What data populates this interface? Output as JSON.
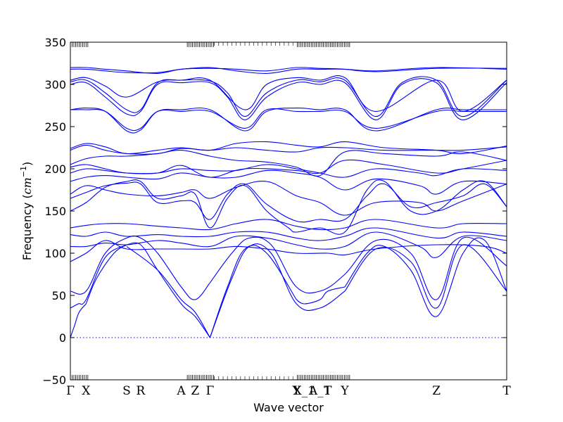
{
  "chart_data": {
    "type": "line",
    "title": "",
    "xlabel": "Wave vector",
    "ylabel_text": "Frequency (",
    "ylabel_unit": "cm",
    "ylabel_exp": "−1",
    "ylabel_close": ")",
    "ylim": [
      -50,
      350
    ],
    "yticks": [
      -50,
      0,
      50,
      100,
      150,
      200,
      250,
      300,
      350
    ],
    "xlim": [
      0,
      1
    ],
    "grid": false,
    "line_color": "#0000ff",
    "zero_line_color": "#0000ff",
    "high_symmetry_points": [
      {
        "label": "Γ",
        "x": 0.0
      },
      {
        "label": "X",
        "x": 0.036
      },
      {
        "label": "S",
        "x": 0.129
      },
      {
        "label": "R",
        "x": 0.161
      },
      {
        "label": "A",
        "x": 0.254
      },
      {
        "label": "Z",
        "x": 0.286
      },
      {
        "label": "Γ",
        "x": 0.32
      },
      {
        "label": "Y",
        "x": 0.518
      },
      {
        "label": "X_1",
        "x": 0.536
      },
      {
        "label": "A_1",
        "x": 0.572
      },
      {
        "label": "T",
        "x": 0.59
      },
      {
        "label": "Y",
        "x": 0.629
      },
      {
        "label": "Z",
        "x": 0.839
      },
      {
        "label": "T",
        "x": 1.0
      }
    ],
    "tick_clusters": [
      [
        0.0,
        0.04
      ],
      [
        0.268,
        0.33
      ],
      [
        0.52,
        0.6
      ],
      [
        0.6,
        0.64
      ]
    ],
    "series": [
      {
        "x": [
          0,
          0.01,
          0.02,
          0.036
        ],
        "y": [
          0,
          15,
          30,
          40
        ]
      },
      {
        "x": [
          0.036,
          0.06,
          0.1,
          0.129
        ],
        "y": [
          40,
          70,
          100,
          110
        ]
      },
      {
        "x": [
          0.129,
          0.161,
          0.2,
          0.254,
          0.286,
          0.32
        ],
        "y": [
          110,
          110,
          80,
          40,
          25,
          0
        ]
      },
      {
        "x": [
          0.32,
          0.36,
          0.4,
          0.45,
          0.518
        ],
        "y": [
          0,
          60,
          105,
          100,
          45
        ]
      },
      {
        "x": [
          0.518,
          0.536,
          0.572,
          0.59,
          0.629
        ],
        "y": [
          45,
          40,
          45,
          55,
          60
        ]
      },
      {
        "x": [
          0.629,
          0.68,
          0.72,
          0.78,
          0.839,
          0.9,
          0.95,
          1.0
        ],
        "y": [
          60,
          100,
          108,
          80,
          25,
          100,
          115,
          55
        ]
      },
      {
        "x": [
          0,
          0.018,
          0.036,
          0.08,
          0.129
        ],
        "y": [
          35,
          40,
          45,
          95,
          110
        ]
      },
      {
        "x": [
          0.129,
          0.2,
          0.254,
          0.286,
          0.32
        ],
        "y": [
          108,
          80,
          45,
          30,
          0
        ]
      },
      {
        "x": [
          0.32,
          0.37,
          0.41,
          0.46,
          0.518,
          0.572,
          0.629
        ],
        "y": [
          0,
          70,
          108,
          100,
          40,
          35,
          55
        ]
      },
      {
        "x": [
          0.629,
          0.7,
          0.78,
          0.839,
          0.9,
          1.0
        ],
        "y": [
          55,
          105,
          90,
          35,
          110,
          55
        ]
      },
      {
        "x": [
          0,
          0.036,
          0.08,
          0.129,
          0.161,
          0.2,
          0.254,
          0.286,
          0.32
        ],
        "y": [
          55,
          55,
          100,
          118,
          118,
          100,
          60,
          45,
          65
        ]
      },
      {
        "x": [
          0.32,
          0.37,
          0.41,
          0.46,
          0.518,
          0.572,
          0.629,
          0.7,
          0.78,
          0.839,
          0.9,
          1.0
        ],
        "y": [
          65,
          100,
          118,
          110,
          60,
          55,
          75,
          115,
          100,
          45,
          118,
          85
        ]
      },
      {
        "x": [
          0,
          0.036,
          0.08,
          0.129,
          0.2,
          0.254,
          0.32,
          0.38,
          0.45,
          0.518,
          0.59,
          0.629,
          0.7,
          0.839,
          0.95,
          1.0
        ],
        "y": [
          90,
          100,
          115,
          105,
          105,
          105,
          105,
          108,
          105,
          100,
          100,
          98,
          105,
          110,
          108,
          100
        ]
      },
      {
        "x": [
          0,
          0.036,
          0.08,
          0.129,
          0.2,
          0.254,
          0.32,
          0.38,
          0.45,
          0.518,
          0.572,
          0.629,
          0.7,
          0.8,
          0.839,
          0.9,
          1.0
        ],
        "y": [
          108,
          108,
          112,
          110,
          115,
          112,
          108,
          120,
          118,
          110,
          105,
          108,
          125,
          108,
          95,
          120,
          115
        ]
      },
      {
        "x": [
          0,
          0.036,
          0.08,
          0.129,
          0.2,
          0.254,
          0.32,
          0.38,
          0.45,
          0.518,
          0.572,
          0.629,
          0.7,
          0.839,
          0.9,
          1.0
        ],
        "y": [
          122,
          120,
          125,
          120,
          122,
          120,
          120,
          125,
          125,
          118,
          115,
          120,
          130,
          118,
          125,
          120
        ]
      },
      {
        "x": [
          0,
          0.036,
          0.08,
          0.129,
          0.2,
          0.254,
          0.32,
          0.38,
          0.45,
          0.518,
          0.572,
          0.629,
          0.7,
          0.839,
          0.9,
          1.0
        ],
        "y": [
          130,
          133,
          135,
          135,
          132,
          130,
          128,
          135,
          140,
          132,
          128,
          130,
          140,
          130,
          135,
          135
        ]
      },
      {
        "x": [
          0,
          0.036,
          0.08,
          0.129,
          0.161,
          0.2,
          0.254,
          0.286,
          0.32,
          0.36,
          0.4,
          0.45,
          0.5,
          0.518,
          0.572,
          0.629,
          0.68,
          0.72,
          0.78,
          0.839,
          0.9,
          0.95,
          1.0
        ],
        "y": [
          150,
          160,
          178,
          185,
          185,
          165,
          168,
          170,
          130,
          165,
          180,
          150,
          130,
          125,
          130,
          125,
          175,
          185,
          150,
          150,
          175,
          185,
          155
        ]
      },
      {
        "x": [
          0,
          0.036,
          0.08,
          0.129,
          0.161,
          0.2,
          0.254,
          0.286,
          0.32,
          0.36,
          0.4,
          0.45,
          0.518,
          0.572,
          0.629,
          0.68,
          0.72,
          0.78,
          0.839,
          0.9,
          0.95,
          1.0
        ],
        "y": [
          165,
          172,
          180,
          183,
          182,
          160,
          162,
          160,
          140,
          170,
          182,
          158,
          138,
          140,
          140,
          168,
          182,
          155,
          160,
          168,
          182,
          155
        ]
      },
      {
        "x": [
          0,
          0.036,
          0.08,
          0.129,
          0.2,
          0.254,
          0.286,
          0.32,
          0.38,
          0.45,
          0.518,
          0.572,
          0.629,
          0.7,
          0.8,
          0.839,
          0.9,
          1.0
        ],
        "y": [
          170,
          180,
          175,
          170,
          168,
          172,
          175,
          165,
          178,
          185,
          168,
          160,
          145,
          160,
          160,
          150,
          162,
          182
        ]
      },
      {
        "x": [
          0,
          0.036,
          0.08,
          0.129,
          0.2,
          0.254,
          0.32,
          0.38,
          0.45,
          0.518,
          0.572,
          0.629,
          0.7,
          0.8,
          0.839,
          0.9,
          1.0
        ],
        "y": [
          185,
          190,
          192,
          190,
          188,
          195,
          190,
          190,
          198,
          195,
          190,
          175,
          188,
          180,
          170,
          185,
          182
        ]
      },
      {
        "x": [
          0,
          0.036,
          0.08,
          0.129,
          0.2,
          0.254,
          0.32,
          0.38,
          0.45,
          0.518,
          0.572,
          0.629,
          0.7,
          0.8,
          0.839,
          0.9,
          1.0
        ],
        "y": [
          195,
          200,
          198,
          195,
          195,
          200,
          198,
          198,
          205,
          200,
          195,
          190,
          200,
          195,
          192,
          200,
          198
        ]
      },
      {
        "x": [
          0,
          0.036,
          0.08,
          0.129,
          0.2,
          0.254,
          0.32,
          0.4,
          0.518,
          0.572,
          0.629,
          0.72,
          0.839,
          0.9,
          1.0
        ],
        "y": [
          202,
          205,
          200,
          195,
          195,
          204,
          190,
          200,
          198,
          195,
          210,
          205,
          195,
          200,
          210
        ]
      },
      {
        "x": [
          0,
          0.036,
          0.08,
          0.129,
          0.2,
          0.254,
          0.32,
          0.38,
          0.45,
          0.518,
          0.572,
          0.629,
          0.72,
          0.839,
          0.9,
          1.0
        ],
        "y": [
          205,
          212,
          215,
          215,
          218,
          222,
          215,
          210,
          208,
          202,
          192,
          220,
          218,
          215,
          220,
          210
        ]
      },
      {
        "x": [
          0,
          0.036,
          0.08,
          0.129,
          0.2,
          0.254,
          0.32,
          0.38,
          0.45,
          0.518,
          0.572,
          0.629,
          0.72,
          0.839,
          0.9,
          1.0
        ],
        "y": [
          222,
          228,
          222,
          218,
          218,
          224,
          222,
          225,
          222,
          220,
          225,
          225,
          222,
          222,
          222,
          226
        ]
      },
      {
        "x": [
          0,
          0.036,
          0.08,
          0.129,
          0.2,
          0.254,
          0.32,
          0.38,
          0.45,
          0.518,
          0.572,
          0.629,
          0.72,
          0.839,
          0.9,
          1.0
        ],
        "y": [
          224,
          230,
          226,
          218,
          222,
          225,
          222,
          230,
          232,
          228,
          226,
          232,
          225,
          222,
          218,
          227
        ]
      },
      {
        "x": [
          0,
          0.036,
          0.08,
          0.129,
          0.161,
          0.2,
          0.254,
          0.32,
          0.4,
          0.45,
          0.518,
          0.572,
          0.629,
          0.7,
          0.839,
          0.9,
          1.0
        ],
        "y": [
          270,
          270,
          268,
          248,
          248,
          268,
          268,
          268,
          248,
          270,
          268,
          268,
          268,
          248,
          268,
          268,
          268
        ]
      },
      {
        "x": [
          0,
          0.036,
          0.08,
          0.129,
          0.161,
          0.2,
          0.254,
          0.32,
          0.4,
          0.45,
          0.518,
          0.572,
          0.629,
          0.7,
          0.839,
          0.9,
          1.0
        ],
        "y": [
          270,
          272,
          268,
          245,
          246,
          268,
          270,
          270,
          245,
          268,
          272,
          270,
          270,
          245,
          270,
          270,
          270
        ]
      },
      {
        "x": [
          0,
          0.036,
          0.08,
          0.129,
          0.161,
          0.2,
          0.254,
          0.32,
          0.36,
          0.4,
          0.45,
          0.518,
          0.572,
          0.629,
          0.7,
          0.76,
          0.839,
          0.9,
          1.0
        ],
        "y": [
          300,
          302,
          285,
          265,
          268,
          300,
          302,
          302,
          285,
          258,
          285,
          302,
          300,
          302,
          258,
          300,
          302,
          258,
          302
        ]
      },
      {
        "x": [
          0,
          0.036,
          0.08,
          0.129,
          0.161,
          0.2,
          0.254,
          0.32,
          0.36,
          0.4,
          0.45,
          0.518,
          0.572,
          0.629,
          0.7,
          0.76,
          0.839,
          0.9,
          1.0
        ],
        "y": [
          303,
          305,
          290,
          270,
          270,
          302,
          305,
          304,
          290,
          262,
          290,
          305,
          303,
          305,
          262,
          302,
          305,
          262,
          305
        ]
      },
      {
        "x": [
          0,
          0.036,
          0.08,
          0.129,
          0.2,
          0.254,
          0.32,
          0.4,
          0.45,
          0.518,
          0.572,
          0.629,
          0.7,
          0.839,
          0.9,
          1.0
        ],
        "y": [
          305,
          308,
          298,
          285,
          303,
          305,
          305,
          270,
          300,
          308,
          305,
          308,
          268,
          305,
          268,
          305
        ]
      },
      {
        "x": [
          0,
          0.036,
          0.08,
          0.129,
          0.2,
          0.254,
          0.32,
          0.38,
          0.45,
          0.518,
          0.572,
          0.629,
          0.7,
          0.839,
          1.0
        ],
        "y": [
          318,
          318,
          316,
          314,
          314,
          318,
          320,
          316,
          313,
          318,
          318,
          318,
          316,
          320,
          318
        ]
      },
      {
        "x": [
          0,
          0.036,
          0.08,
          0.129,
          0.2,
          0.254,
          0.32,
          0.38,
          0.45,
          0.518,
          0.572,
          0.629,
          0.7,
          0.839,
          1.0
        ],
        "y": [
          320,
          320,
          318,
          316,
          313,
          318,
          319,
          318,
          316,
          320,
          319,
          318,
          315,
          319,
          319
        ]
      }
    ]
  }
}
